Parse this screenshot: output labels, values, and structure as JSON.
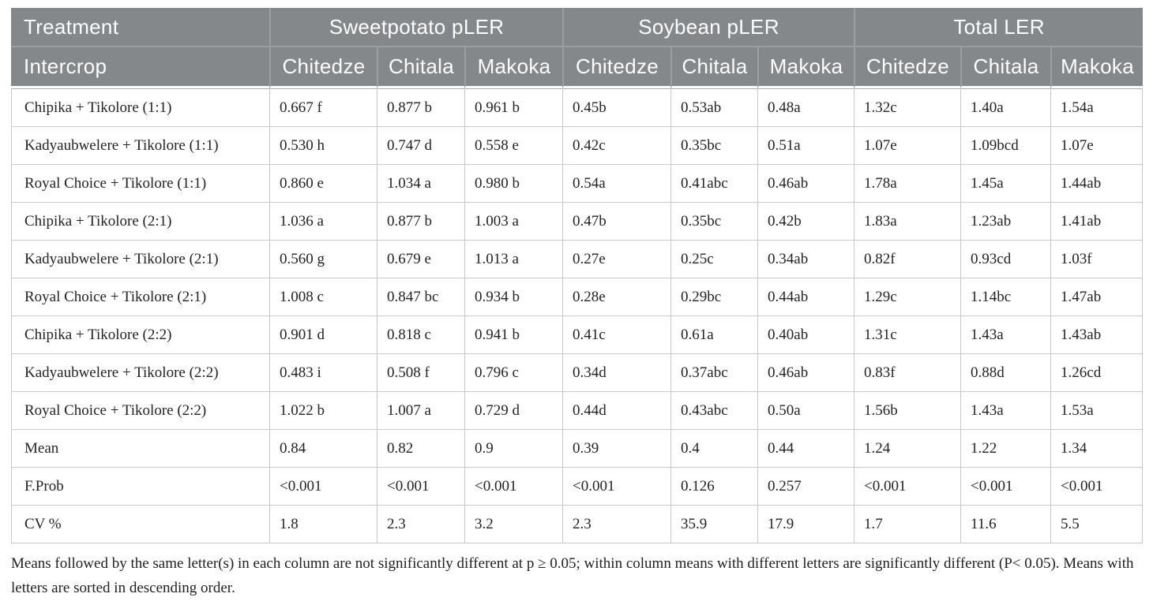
{
  "table": {
    "header": {
      "treatment": "Treatment",
      "intercrop": "Intercrop",
      "groups": [
        {
          "label": "Sweetpotato pLER",
          "sites": [
            "Chitedze",
            "Chitala",
            "Makoka"
          ]
        },
        {
          "label": "Soybean pLER",
          "sites": [
            "Chitedze",
            "Chitala",
            "Makoka"
          ]
        },
        {
          "label": "Total LER",
          "sites": [
            "Chitedze",
            "Chitala",
            "Makoka"
          ]
        }
      ]
    },
    "rows": [
      {
        "label": "Chipika + Tikolore (1:1)",
        "values": [
          "0.667 f",
          "0.877 b",
          "0.961 b",
          "0.45b",
          "0.53ab",
          "0.48a",
          "1.32c",
          "1.40a",
          "1.54a"
        ]
      },
      {
        "label": "Kadyaubwelere + Tikolore (1:1)",
        "values": [
          "0.530 h",
          "0.747 d",
          "0.558 e",
          "0.42c",
          "0.35bc",
          "0.51a",
          "1.07e",
          "1.09bcd",
          "1.07e"
        ]
      },
      {
        "label": "Royal Choice + Tikolore (1:1)",
        "values": [
          "0.860 e",
          "1.034 a",
          "0.980 b",
          "0.54a",
          "0.41abc",
          "0.46ab",
          "1.78a",
          "1.45a",
          "1.44ab"
        ]
      },
      {
        "label": "Chipika + Tikolore (2:1)",
        "values": [
          "1.036 a",
          "0.877 b",
          "1.003 a",
          "0.47b",
          "0.35bc",
          "0.42b",
          "1.83a",
          "1.23ab",
          "1.41ab"
        ]
      },
      {
        "label": "Kadyaubwelere + Tikolore (2:1)",
        "values": [
          "0.560 g",
          "0.679 e",
          "1.013 a",
          "0.27e",
          "0.25c",
          "0.34ab",
          "0.82f",
          "0.93cd",
          "1.03f"
        ]
      },
      {
        "label": "Royal Choice + Tikolore (2:1)",
        "values": [
          "1.008 c",
          "0.847 bc",
          "0.934 b",
          "0.28e",
          "0.29bc",
          "0.44ab",
          "1.29c",
          "1.14bc",
          "1.47ab"
        ]
      },
      {
        "label": "Chipika + Tikolore (2:2)",
        "values": [
          "0.901 d",
          "0.818 c",
          "0.941 b",
          "0.41c",
          "0.61a",
          "0.40ab",
          "1.31c",
          "1.43a",
          "1.43ab"
        ]
      },
      {
        "label": "Kadyaubwelere + Tikolore (2:2)",
        "values": [
          "0.483 i",
          "0.508 f",
          "0.796 c",
          "0.34d",
          "0.37abc",
          "0.46ab",
          "0.83f",
          "0.88d",
          "1.26cd"
        ]
      },
      {
        "label": "Royal Choice + Tikolore (2:2)",
        "values": [
          "1.022 b",
          "1.007 a",
          "0.729 d",
          "0.44d",
          "0.43abc",
          "0.50a",
          "1.56b",
          "1.43a",
          "1.53a"
        ]
      },
      {
        "label": "Mean",
        "values": [
          "0.84",
          "0.82",
          "0.9",
          "0.39",
          "0.4",
          "0.44",
          "1.24",
          "1.22",
          "1.34"
        ]
      },
      {
        "label": "F.Prob",
        "values": [
          "<0.001",
          "<0.001",
          "<0.001",
          "<0.001",
          "0.126",
          "0.257",
          "<0.001",
          "<0.001",
          "<0.001"
        ]
      },
      {
        "label": "CV %",
        "values": [
          "1.8",
          "2.3",
          "3.2",
          "2.3",
          "35.9",
          "17.9",
          "1.7",
          "11.6",
          "5.5"
        ]
      }
    ],
    "footnote": "Means followed by the same letter(s) in each column are not significantly different at p ≥ 0.05; within column means with different letters are significantly different (P< 0.05). Means with letters are sorted in descending order.",
    "colors": {
      "header_bg": "#85888b",
      "header_text": "#ffffff",
      "header_divider": "#9b9ea0",
      "grid_line": "#c6c7c9",
      "body_text": "#232323"
    }
  }
}
